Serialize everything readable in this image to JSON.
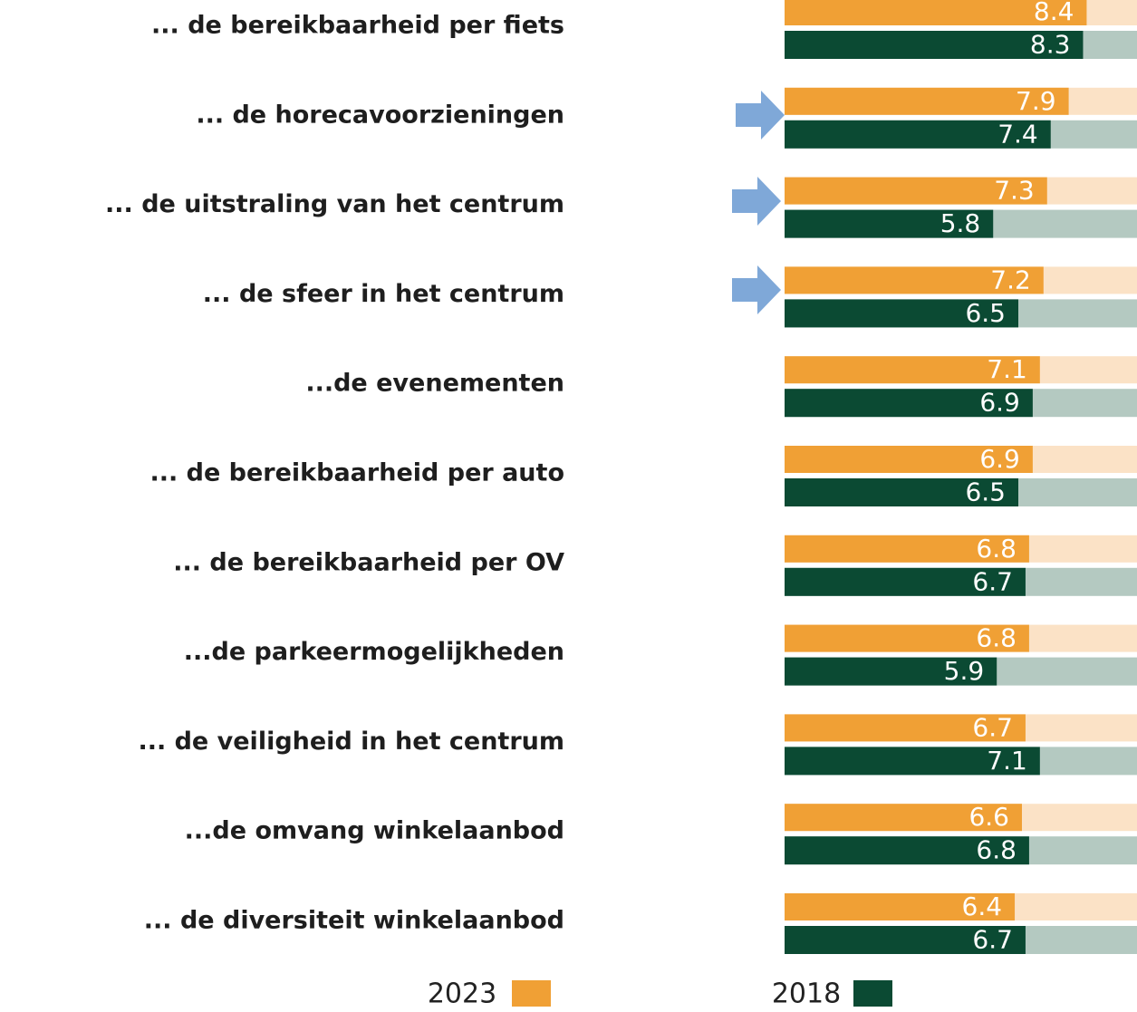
{
  "chart_data": {
    "type": "hbar",
    "categories": [
      "... de bereikbaarheid per fiets",
      "... de horecavoorzieningen",
      "... de uitstraling van het centrum",
      "... de sfeer in het centrum",
      "...de evenementen",
      "... de bereikbaarheid per auto",
      "... de bereikbaarheid per OV",
      "...de parkeermogelijkheden",
      "... de veiligheid in het centrum",
      "...de omvang winkelaanbod",
      "... de diversiteit winkelaanbod"
    ],
    "series": [
      {
        "name": "2023",
        "color": "#f0a035",
        "values": [
          8.4,
          7.9,
          7.3,
          7.2,
          7.1,
          6.9,
          6.8,
          6.8,
          6.7,
          6.6,
          6.4
        ]
      },
      {
        "name": "2018",
        "color": "#0b4a33",
        "values": [
          8.3,
          7.4,
          5.8,
          6.5,
          6.9,
          6.5,
          6.7,
          5.9,
          7.1,
          6.8,
          6.7
        ]
      }
    ],
    "xlim": [
      0,
      9.8
    ]
  }
}
